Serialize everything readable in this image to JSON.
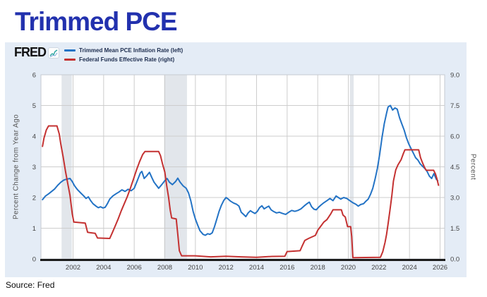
{
  "page": {
    "title": "Trimmed PCE",
    "source": "Source: Fred"
  },
  "fred": {
    "logo": "FRED",
    "spark_icon": "sparkline-icon"
  },
  "legend": [
    {
      "label": "Trimmed Mean PCE Inflation Rate (left)",
      "color": "#2373c5"
    },
    {
      "label": "Federal Funds Effective Rate (right)",
      "color": "#c43131"
    }
  ],
  "colors": {
    "title": "#2231ae",
    "embed_background": "#e4ecf6",
    "plot_background": "#ffffff",
    "gridline": "#cdcdcd",
    "plot_border": "#c6cad0",
    "recession_band": "#e2e6eb",
    "axis_line": "#1c1c1c",
    "tick_text": "#444444",
    "blue_series": "#2373c5",
    "red_series": "#c43131"
  },
  "chart_data": {
    "type": "line",
    "title": "Trimmed PCE",
    "grid": true,
    "legend_position": "top-left",
    "x_axis": {
      "range": [
        1999.9,
        2026.3
      ],
      "ticks": [
        2002,
        2004,
        2006,
        2008,
        2010,
        2012,
        2014,
        2016,
        2018,
        2020,
        2022,
        2024,
        2026
      ]
    },
    "left_axis": {
      "label": "Percent Change from Year Ago",
      "range": [
        0,
        6
      ],
      "ticks": [
        0,
        1,
        2,
        3,
        4,
        5,
        6
      ]
    },
    "right_axis": {
      "label": "Percent",
      "range": [
        0,
        9
      ],
      "ticks": [
        0.0,
        1.5,
        3.0,
        4.5,
        6.0,
        7.5,
        9.0
      ]
    },
    "recessions": [
      [
        2001.25,
        2001.92
      ],
      [
        2007.95,
        2009.45
      ],
      [
        2020.1,
        2020.35
      ]
    ],
    "series": [
      {
        "name": "Trimmed Mean PCE Inflation Rate (left)",
        "axis": "left",
        "color": "#2373c5",
        "points": [
          [
            2000.0,
            1.93
          ],
          [
            2000.2,
            2.05
          ],
          [
            2000.4,
            2.12
          ],
          [
            2000.6,
            2.2
          ],
          [
            2000.8,
            2.28
          ],
          [
            2001.0,
            2.4
          ],
          [
            2001.2,
            2.5
          ],
          [
            2001.4,
            2.57
          ],
          [
            2001.6,
            2.6
          ],
          [
            2001.8,
            2.62
          ],
          [
            2001.95,
            2.52
          ],
          [
            2002.1,
            2.38
          ],
          [
            2002.3,
            2.25
          ],
          [
            2002.5,
            2.15
          ],
          [
            2002.7,
            2.05
          ],
          [
            2002.85,
            1.97
          ],
          [
            2003.0,
            2.02
          ],
          [
            2003.15,
            1.9
          ],
          [
            2003.3,
            1.8
          ],
          [
            2003.5,
            1.72
          ],
          [
            2003.65,
            1.67
          ],
          [
            2003.8,
            1.7
          ],
          [
            2003.95,
            1.66
          ],
          [
            2004.1,
            1.68
          ],
          [
            2004.25,
            1.8
          ],
          [
            2004.4,
            1.95
          ],
          [
            2004.6,
            2.05
          ],
          [
            2004.8,
            2.12
          ],
          [
            2005.0,
            2.18
          ],
          [
            2005.2,
            2.25
          ],
          [
            2005.4,
            2.2
          ],
          [
            2005.6,
            2.27
          ],
          [
            2005.8,
            2.22
          ],
          [
            2006.0,
            2.3
          ],
          [
            2006.2,
            2.55
          ],
          [
            2006.4,
            2.8
          ],
          [
            2006.5,
            2.85
          ],
          [
            2006.65,
            2.62
          ],
          [
            2006.8,
            2.7
          ],
          [
            2007.0,
            2.82
          ],
          [
            2007.15,
            2.65
          ],
          [
            2007.3,
            2.5
          ],
          [
            2007.45,
            2.4
          ],
          [
            2007.6,
            2.3
          ],
          [
            2007.8,
            2.42
          ],
          [
            2008.0,
            2.55
          ],
          [
            2008.15,
            2.62
          ],
          [
            2008.3,
            2.5
          ],
          [
            2008.5,
            2.42
          ],
          [
            2008.7,
            2.52
          ],
          [
            2008.85,
            2.63
          ],
          [
            2009.0,
            2.5
          ],
          [
            2009.2,
            2.38
          ],
          [
            2009.4,
            2.3
          ],
          [
            2009.55,
            2.15
          ],
          [
            2009.7,
            1.9
          ],
          [
            2009.85,
            1.55
          ],
          [
            2010.0,
            1.3
          ],
          [
            2010.15,
            1.1
          ],
          [
            2010.3,
            0.92
          ],
          [
            2010.5,
            0.8
          ],
          [
            2010.65,
            0.77
          ],
          [
            2010.8,
            0.82
          ],
          [
            2010.95,
            0.8
          ],
          [
            2011.1,
            0.85
          ],
          [
            2011.25,
            1.05
          ],
          [
            2011.4,
            1.3
          ],
          [
            2011.55,
            1.55
          ],
          [
            2011.7,
            1.75
          ],
          [
            2011.85,
            1.9
          ],
          [
            2012.0,
            2.0
          ],
          [
            2012.15,
            1.95
          ],
          [
            2012.3,
            1.88
          ],
          [
            2012.5,
            1.82
          ],
          [
            2012.7,
            1.78
          ],
          [
            2012.85,
            1.72
          ],
          [
            2013.0,
            1.52
          ],
          [
            2013.15,
            1.45
          ],
          [
            2013.3,
            1.38
          ],
          [
            2013.45,
            1.5
          ],
          [
            2013.6,
            1.57
          ],
          [
            2013.75,
            1.52
          ],
          [
            2013.9,
            1.48
          ],
          [
            2014.05,
            1.55
          ],
          [
            2014.2,
            1.67
          ],
          [
            2014.35,
            1.73
          ],
          [
            2014.5,
            1.63
          ],
          [
            2014.65,
            1.68
          ],
          [
            2014.8,
            1.72
          ],
          [
            2014.95,
            1.6
          ],
          [
            2015.1,
            1.55
          ],
          [
            2015.3,
            1.5
          ],
          [
            2015.5,
            1.52
          ],
          [
            2015.7,
            1.48
          ],
          [
            2015.9,
            1.45
          ],
          [
            2016.1,
            1.52
          ],
          [
            2016.3,
            1.58
          ],
          [
            2016.5,
            1.55
          ],
          [
            2016.7,
            1.58
          ],
          [
            2016.9,
            1.63
          ],
          [
            2017.1,
            1.72
          ],
          [
            2017.3,
            1.8
          ],
          [
            2017.45,
            1.85
          ],
          [
            2017.6,
            1.7
          ],
          [
            2017.75,
            1.62
          ],
          [
            2017.9,
            1.6
          ],
          [
            2018.05,
            1.68
          ],
          [
            2018.2,
            1.75
          ],
          [
            2018.4,
            1.83
          ],
          [
            2018.6,
            1.9
          ],
          [
            2018.8,
            1.97
          ],
          [
            2019.0,
            1.9
          ],
          [
            2019.2,
            2.05
          ],
          [
            2019.35,
            2.0
          ],
          [
            2019.5,
            1.95
          ],
          [
            2019.7,
            2.0
          ],
          [
            2019.9,
            1.97
          ],
          [
            2020.1,
            1.9
          ],
          [
            2020.3,
            1.83
          ],
          [
            2020.5,
            1.78
          ],
          [
            2020.65,
            1.72
          ],
          [
            2020.8,
            1.77
          ],
          [
            2021.0,
            1.8
          ],
          [
            2021.15,
            1.88
          ],
          [
            2021.3,
            1.95
          ],
          [
            2021.45,
            2.1
          ],
          [
            2021.6,
            2.3
          ],
          [
            2021.75,
            2.6
          ],
          [
            2021.9,
            2.95
          ],
          [
            2022.05,
            3.4
          ],
          [
            2022.2,
            3.95
          ],
          [
            2022.35,
            4.4
          ],
          [
            2022.5,
            4.75
          ],
          [
            2022.6,
            4.95
          ],
          [
            2022.75,
            5.0
          ],
          [
            2022.9,
            4.85
          ],
          [
            2023.05,
            4.92
          ],
          [
            2023.2,
            4.88
          ],
          [
            2023.35,
            4.6
          ],
          [
            2023.5,
            4.4
          ],
          [
            2023.65,
            4.2
          ],
          [
            2023.8,
            3.95
          ],
          [
            2023.95,
            3.75
          ],
          [
            2024.1,
            3.6
          ],
          [
            2024.25,
            3.45
          ],
          [
            2024.4,
            3.3
          ],
          [
            2024.55,
            3.22
          ],
          [
            2024.7,
            3.1
          ],
          [
            2024.85,
            3.02
          ],
          [
            2025.0,
            2.95
          ],
          [
            2025.15,
            2.85
          ],
          [
            2025.3,
            2.7
          ],
          [
            2025.45,
            2.62
          ],
          [
            2025.6,
            2.78
          ],
          [
            2025.75,
            2.6
          ],
          [
            2025.85,
            2.55
          ]
        ]
      },
      {
        "name": "Federal Funds Effective Rate (right)",
        "axis": "right",
        "color": "#c43131",
        "points": [
          [
            2000.0,
            5.5
          ],
          [
            2000.1,
            5.9
          ],
          [
            2000.25,
            6.3
          ],
          [
            2000.4,
            6.5
          ],
          [
            2000.95,
            6.5
          ],
          [
            2001.1,
            6.1
          ],
          [
            2001.2,
            5.6
          ],
          [
            2001.35,
            5.0
          ],
          [
            2001.5,
            4.3
          ],
          [
            2001.65,
            3.7
          ],
          [
            2001.8,
            3.1
          ],
          [
            2001.95,
            2.2
          ],
          [
            2002.05,
            1.8
          ],
          [
            2002.8,
            1.75
          ],
          [
            2002.95,
            1.3
          ],
          [
            2003.45,
            1.25
          ],
          [
            2003.6,
            1.02
          ],
          [
            2004.4,
            1.0
          ],
          [
            2004.55,
            1.25
          ],
          [
            2004.75,
            1.6
          ],
          [
            2004.95,
            1.95
          ],
          [
            2005.15,
            2.35
          ],
          [
            2005.35,
            2.7
          ],
          [
            2005.55,
            3.05
          ],
          [
            2005.75,
            3.45
          ],
          [
            2005.95,
            3.9
          ],
          [
            2006.15,
            4.35
          ],
          [
            2006.35,
            4.75
          ],
          [
            2006.55,
            5.1
          ],
          [
            2006.7,
            5.25
          ],
          [
            2007.6,
            5.25
          ],
          [
            2007.72,
            5.05
          ],
          [
            2007.85,
            4.65
          ],
          [
            2008.0,
            4.25
          ],
          [
            2008.12,
            3.6
          ],
          [
            2008.25,
            3.0
          ],
          [
            2008.35,
            2.4
          ],
          [
            2008.45,
            2.0
          ],
          [
            2008.75,
            1.95
          ],
          [
            2008.85,
            1.2
          ],
          [
            2008.95,
            0.4
          ],
          [
            2009.1,
            0.15
          ],
          [
            2010.0,
            0.15
          ],
          [
            2011.0,
            0.1
          ],
          [
            2012.0,
            0.13
          ],
          [
            2013.0,
            0.1
          ],
          [
            2014.0,
            0.08
          ],
          [
            2015.0,
            0.12
          ],
          [
            2015.85,
            0.13
          ],
          [
            2016.0,
            0.36
          ],
          [
            2016.85,
            0.4
          ],
          [
            2017.0,
            0.66
          ],
          [
            2017.15,
            0.9
          ],
          [
            2017.4,
            1.0
          ],
          [
            2017.85,
            1.15
          ],
          [
            2018.0,
            1.4
          ],
          [
            2018.2,
            1.6
          ],
          [
            2018.4,
            1.8
          ],
          [
            2018.6,
            1.92
          ],
          [
            2018.85,
            2.2
          ],
          [
            2019.0,
            2.4
          ],
          [
            2019.55,
            2.4
          ],
          [
            2019.65,
            2.15
          ],
          [
            2019.8,
            2.05
          ],
          [
            2019.95,
            1.58
          ],
          [
            2020.15,
            1.58
          ],
          [
            2020.22,
            1.1
          ],
          [
            2020.3,
            0.06
          ],
          [
            2022.1,
            0.08
          ],
          [
            2022.25,
            0.35
          ],
          [
            2022.4,
            0.8
          ],
          [
            2022.5,
            1.2
          ],
          [
            2022.6,
            1.7
          ],
          [
            2022.72,
            2.35
          ],
          [
            2022.85,
            3.1
          ],
          [
            2022.95,
            3.8
          ],
          [
            2023.1,
            4.35
          ],
          [
            2023.25,
            4.6
          ],
          [
            2023.45,
            4.85
          ],
          [
            2023.6,
            5.15
          ],
          [
            2023.7,
            5.33
          ],
          [
            2024.6,
            5.33
          ],
          [
            2024.72,
            4.95
          ],
          [
            2024.85,
            4.7
          ],
          [
            2025.0,
            4.45
          ],
          [
            2025.1,
            4.33
          ],
          [
            2025.58,
            4.33
          ],
          [
            2025.7,
            4.15
          ],
          [
            2025.8,
            3.9
          ],
          [
            2025.9,
            3.6
          ]
        ]
      }
    ]
  }
}
